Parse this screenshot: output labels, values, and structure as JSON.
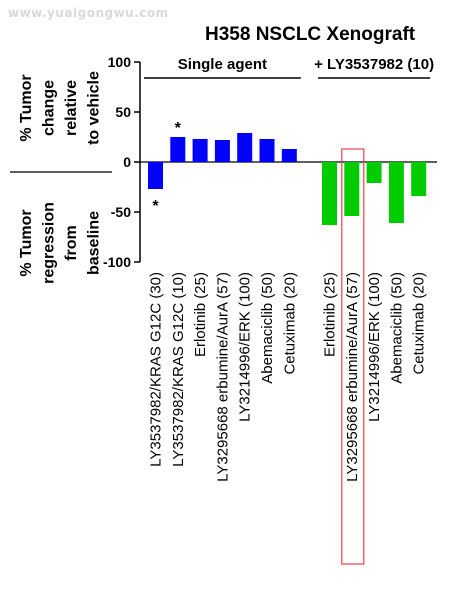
{
  "watermark": "www.yuaigongwu.com",
  "chart_data": {
    "type": "bar",
    "title": "H358 NSCLC Xenograft",
    "ylabel_upper": [
      "% Tumor",
      "change",
      "relative",
      "to vehicle"
    ],
    "ylabel_lower": [
      "% Tumor",
      "regression",
      "from",
      "baseline"
    ],
    "ylim": [
      -100,
      100
    ],
    "yticks": [
      100,
      50,
      0,
      -50,
      -100
    ],
    "groups": [
      {
        "label": "Single agent",
        "color": "#0000ff",
        "categories": [
          "LY3537982/KRAS G12C (30)",
          "LY3537982/KRAS G12C (10)",
          "Erlotinib (25)",
          "LY3295668 erbumine/AurA (57)",
          "LY3214996/ERK (100)",
          "Abemaciclib (50)",
          "Cetuximab (20)"
        ],
        "values": [
          -27,
          25,
          23,
          22,
          29,
          23,
          13
        ]
      },
      {
        "label": "+ LY3537982 (10)",
        "color": "#00cc00",
        "categories": [
          "Erlotinib (25)",
          "LY3295668 erbumine/AurA (57)",
          "LY3214996/ERK (100)",
          "Abemaciclib (50)",
          "Cetuximab (20)"
        ],
        "values": [
          -63,
          -54,
          -21,
          -61,
          -34
        ]
      }
    ],
    "annotations": [
      {
        "text": "*",
        "group": 0,
        "index": 0
      },
      {
        "text": "*",
        "group": 0,
        "index": 1
      }
    ],
    "highlight": {
      "group": 1,
      "index": 1,
      "color": "#e8434a"
    },
    "grid": false,
    "legend": "none"
  }
}
